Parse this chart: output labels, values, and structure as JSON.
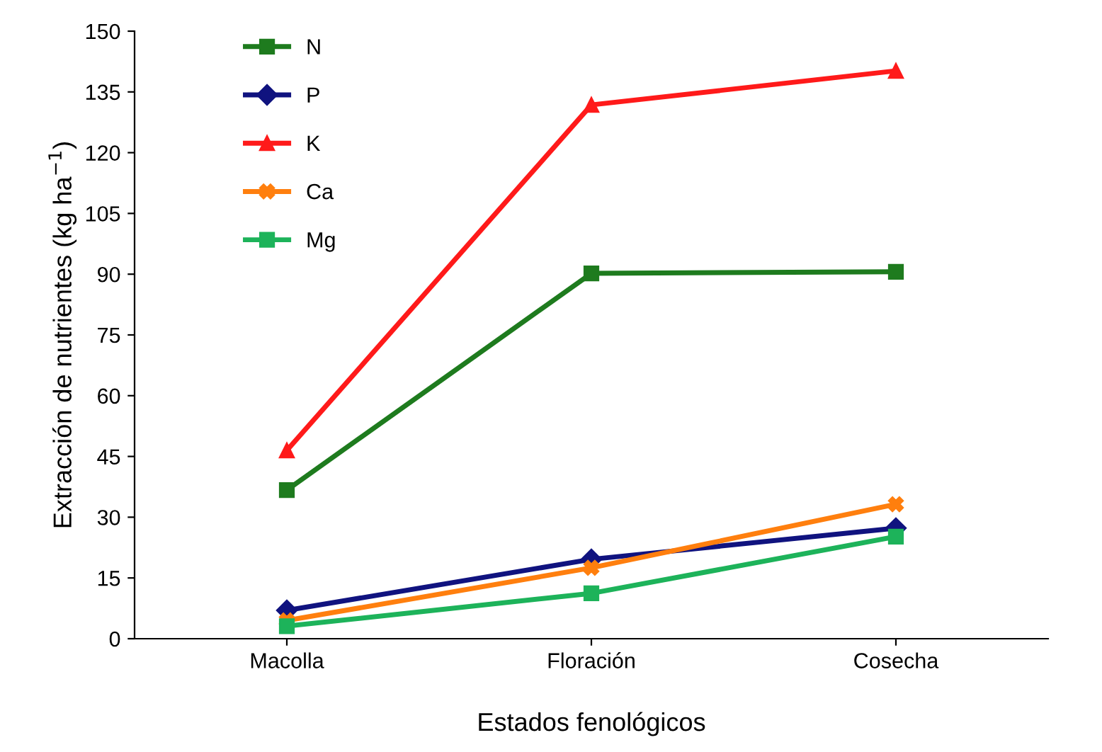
{
  "chart_data": {
    "type": "line",
    "xlabel": "Estados fenológicos",
    "ylabel": "Extracción de nutrientes (kg ha$^{−1}$)",
    "categories": [
      "Macolla",
      "Floración",
      "Cosecha"
    ],
    "ylim": [
      0,
      150
    ],
    "yticks": [
      0,
      15,
      30,
      45,
      60,
      75,
      90,
      105,
      120,
      135,
      150
    ],
    "grid": false,
    "legend": "top left",
    "series": [
      {
        "name": "N",
        "color": "#1e7b1e",
        "marker": "square",
        "values": [
          36.7,
          90.2,
          90.6
        ]
      },
      {
        "name": "P",
        "color": "#10137f",
        "marker": "diamond",
        "values": [
          7.0,
          19.6,
          27.3
        ]
      },
      {
        "name": "K",
        "color": "#ff1a1a",
        "marker": "triangle",
        "values": [
          46.5,
          131.8,
          140.2
        ]
      },
      {
        "name": "Ca",
        "color": "#ff7f0e",
        "marker": "cross",
        "values": [
          4.5,
          17.5,
          33.2
        ]
      },
      {
        "name": "Mg",
        "color": "#1db35a",
        "marker": "square",
        "values": [
          3.1,
          11.2,
          25.2
        ]
      }
    ]
  }
}
